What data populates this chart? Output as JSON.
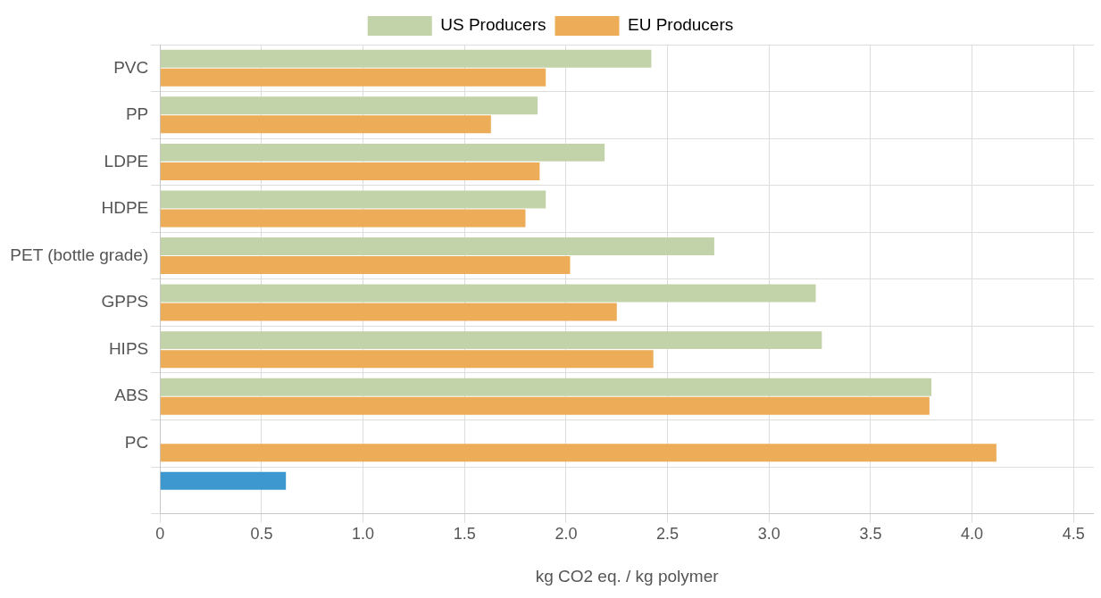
{
  "chart_data": {
    "type": "bar",
    "orientation": "horizontal",
    "xlabel": "kg CO2 eq. / kg polymer",
    "categories": [
      "PVC",
      "PP",
      "LDPE",
      "HDPE",
      "PET (bottle grade)",
      "GPPS",
      "HIPS",
      "ABS",
      "PC",
      null
    ],
    "series": [
      {
        "name": "US Producers",
        "color": "#c2d3a9",
        "colors": [
          "#c2d3a9",
          "#c2d3a9",
          "#c2d3a9",
          "#c2d3a9",
          "#c2d3a9",
          "#c2d3a9",
          "#c2d3a9",
          "#c2d3a9",
          "#c2d3a9",
          "#3d98cf"
        ],
        "values": [
          2.42,
          1.86,
          2.19,
          1.9,
          2.73,
          3.23,
          3.26,
          3.8,
          null,
          0.62
        ]
      },
      {
        "name": "EU Producers",
        "color": "#ecac58",
        "values": [
          1.9,
          1.63,
          1.87,
          1.8,
          2.02,
          2.25,
          2.43,
          3.79,
          4.12,
          null
        ]
      }
    ],
    "xlim": [
      0,
      4.6
    ],
    "xticks": [
      0,
      0.5,
      {
        "value": 1,
        "label": "1.0"
      },
      1.5,
      {
        "value": 2,
        "label": "2.0"
      },
      2.5,
      {
        "value": 3,
        "label": "3.0"
      },
      3.5,
      {
        "value": 4,
        "label": "4.0"
      },
      4.5
    ],
    "grid": true,
    "legend": "top"
  }
}
